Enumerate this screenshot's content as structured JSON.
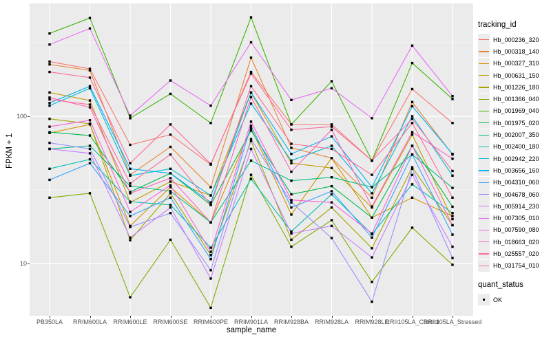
{
  "figure": {
    "y_axis": {
      "title": "FPKM + 1"
    },
    "x_axis": {
      "title": "sample_name"
    },
    "legend": {
      "title": "tracking_id"
    },
    "quant_legend": {
      "title": "quant_status",
      "items": [
        {
          "label": "OK"
        }
      ]
    }
  },
  "chart_data": {
    "type": "line",
    "title": "",
    "xlabel": "sample_name",
    "ylabel": "FPKM + 1",
    "y_scale": "log10",
    "y_ticks": [
      10,
      100
    ],
    "y_minor_ticks": [
      31.623,
      316.23
    ],
    "ylim": [
      4.4,
      585
    ],
    "grid": true,
    "legend_position": "right",
    "panel_background": "#EBEBEB",
    "gridline_color": "#FFFFFF",
    "point_color": "#000000",
    "point_shape": "square",
    "x_categories": [
      "PB350LA",
      "RRIM600LA",
      "RRIM600LE",
      "RRIM600SE",
      "RRIM600PE",
      "RRIM901LA",
      "RRIM928BA",
      "RRIM928LA",
      "RRIM928LE",
      "RRII105LA_Control",
      "RRII105LA_Stressed"
    ],
    "series": [
      {
        "name": "Hb_000236_320",
        "color": "#F8766D",
        "values": [
          235,
          210,
          64,
          75,
          47,
          200,
          88,
          88,
          50,
          153,
          90
        ]
      },
      {
        "name": "Hb_000318_140",
        "color": "#EA8331",
        "values": [
          225,
          205,
          40,
          62,
          33,
          250,
          61,
          52,
          28,
          125,
          55
        ]
      },
      {
        "name": "Hb_000327_310",
        "color": "#D89000",
        "values": [
          77,
          88,
          18,
          33,
          19,
          83,
          21.5,
          52,
          20.5,
          28,
          21
        ]
      },
      {
        "name": "Hb_000631_150",
        "color": "#C09B00",
        "values": [
          145,
          128,
          26,
          36,
          29,
          145,
          48,
          44.5,
          24,
          75,
          20
        ]
      },
      {
        "name": "Hb_001226_180",
        "color": "#A3A500",
        "values": [
          96,
          89,
          14.4,
          30,
          11.4,
          68,
          14.5,
          24,
          12.7,
          45,
          18.2
        ]
      },
      {
        "name": "Hb_001366_040",
        "color": "#7CAE00",
        "values": [
          28,
          30,
          5.9,
          14.5,
          5,
          40,
          13,
          19.7,
          7.5,
          17.5,
          9.8
        ]
      },
      {
        "name": "Hb_001969_040",
        "color": "#39B600",
        "values": [
          365,
          465,
          97,
          142,
          90,
          470,
          88,
          173,
          50,
          230,
          131
        ]
      },
      {
        "name": "Hb_001975_020",
        "color": "#00BB4E",
        "values": [
          78,
          74,
          30.6,
          41,
          25,
          80,
          29.5,
          33.5,
          20.5,
          63,
          24.3
        ]
      },
      {
        "name": "Hb_002007_350",
        "color": "#00C087",
        "values": [
          60,
          63,
          33.6,
          31,
          19,
          50,
          36.5,
          38.5,
          33,
          55,
          32.6
        ]
      },
      {
        "name": "Hb_002400_180",
        "color": "#00C0B3",
        "values": [
          44,
          51,
          26.3,
          25,
          12.8,
          37.5,
          16.5,
          29.5,
          15.8,
          34.5,
          22
        ]
      },
      {
        "name": "Hb_002942_220",
        "color": "#00BCD8",
        "values": [
          118,
          155,
          39.5,
          44,
          29,
          122,
          50,
          63,
          30,
          100,
          39.5
        ]
      },
      {
        "name": "Hb_003656_160",
        "color": "#00B0F6",
        "values": [
          123,
          160,
          44,
          41,
          26,
          145,
          55.5,
          73,
          33,
          117,
          55.5
        ]
      },
      {
        "name": "Hb_004310_060",
        "color": "#35A2FF",
        "values": [
          37,
          48,
          21,
          28,
          10.7,
          86,
          24,
          31,
          15,
          55,
          15.7
        ]
      },
      {
        "name": "Hb_004678_060",
        "color": "#9590FF",
        "values": [
          66,
          60,
          17.7,
          22,
          9,
          70,
          26,
          14.9,
          5.5,
          44,
          10.9
        ]
      },
      {
        "name": "Hb_005914_230",
        "color": "#C77CFF",
        "values": [
          60,
          56,
          15,
          24,
          7.9,
          60,
          16,
          18,
          11,
          40,
          13
        ]
      },
      {
        "name": "Hb_007305_010",
        "color": "#E76BF3",
        "values": [
          307,
          395,
          101,
          175,
          118,
          318,
          129,
          155,
          97,
          302,
          137
        ]
      },
      {
        "name": "Hb_007590_080",
        "color": "#FA62DB",
        "values": [
          85,
          94,
          22.4,
          34,
          12,
          92,
          27,
          26,
          16,
          63,
          18.2
        ]
      },
      {
        "name": "Hb_018663_020",
        "color": "#FF62BC",
        "values": [
          134,
          115,
          30,
          38,
          19,
          135,
          42,
          81,
          24.4,
          78,
          51.5
        ]
      },
      {
        "name": "Hb_025557_020",
        "color": "#FF689E",
        "values": [
          200,
          183,
          48,
          88,
          47.5,
          195,
          81,
          85,
          50,
          96,
          42.5
        ]
      },
      {
        "name": "Hb_031754_010",
        "color": "#FF6B94",
        "values": [
          130,
          120,
          35,
          55,
          25,
          160,
          65,
          60,
          40,
          90,
          28
        ]
      }
    ],
    "quant_status": {
      "label": "OK",
      "marker": "black-square"
    }
  }
}
